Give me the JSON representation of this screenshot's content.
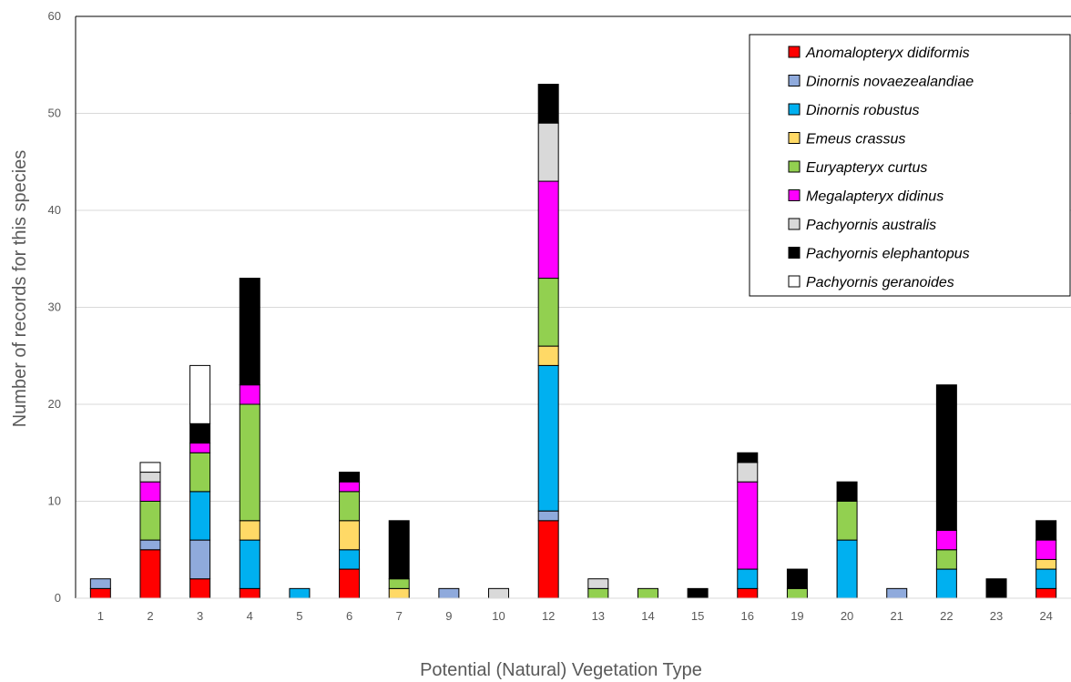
{
  "chart_data": {
    "type": "bar",
    "stacked": true,
    "title": "",
    "xlabel": "Potential (Natural) Vegetation Type",
    "ylabel": "Number of records for this species",
    "ylim": [
      0,
      60
    ],
    "yticks": [
      "0",
      "10",
      "20",
      "30",
      "40",
      "50",
      "60"
    ],
    "grid": true,
    "legend_position": "top-right",
    "categories": [
      "1",
      "2",
      "3",
      "4",
      "5",
      "6",
      "7",
      "9",
      "10",
      "12",
      "13",
      "14",
      "15",
      "16",
      "19",
      "20",
      "21",
      "22",
      "23",
      "24"
    ],
    "series": [
      {
        "name": "Anomalopteryx didiformis",
        "color": "#ff0000",
        "values": [
          1,
          5,
          2,
          1,
          0,
          3,
          0,
          0,
          0,
          8,
          0,
          0,
          0,
          1,
          0,
          0,
          0,
          0,
          0,
          1
        ]
      },
      {
        "name": "Dinornis novaezealandiae",
        "color": "#8faadc",
        "values": [
          1,
          1,
          4,
          0,
          0,
          0,
          0,
          1,
          0,
          1,
          0,
          0,
          0,
          0,
          0,
          0,
          1,
          0,
          0,
          0
        ]
      },
      {
        "name": "Dinornis robustus",
        "color": "#00b0f0",
        "values": [
          0,
          0,
          5,
          5,
          1,
          2,
          0,
          0,
          0,
          15,
          0,
          0,
          0,
          2,
          0,
          6,
          0,
          3,
          0,
          2
        ]
      },
      {
        "name": "Emeus crassus",
        "color": "#ffd966",
        "values": [
          0,
          0,
          0,
          2,
          0,
          3,
          1,
          0,
          0,
          2,
          0,
          0,
          0,
          0,
          0,
          0,
          0,
          0,
          0,
          1
        ]
      },
      {
        "name": "Euryapteryx curtus",
        "color": "#92d050",
        "values": [
          0,
          4,
          4,
          12,
          0,
          3,
          1,
          0,
          0,
          7,
          1,
          1,
          0,
          0,
          1,
          4,
          0,
          2,
          0,
          0
        ]
      },
      {
        "name": "Megalapteryx didinus",
        "color": "#ff00ff",
        "values": [
          0,
          2,
          1,
          2,
          0,
          1,
          0,
          0,
          0,
          10,
          0,
          0,
          0,
          9,
          0,
          0,
          0,
          2,
          0,
          2
        ]
      },
      {
        "name": "Pachyornis australis",
        "color": "#d9d9d9",
        "values": [
          0,
          1,
          0,
          0,
          0,
          0,
          0,
          0,
          1,
          6,
          1,
          0,
          0,
          2,
          0,
          0,
          0,
          0,
          0,
          0
        ]
      },
      {
        "name": "Pachyornis elephantopus",
        "color": "#000000",
        "values": [
          0,
          0,
          2,
          11,
          0,
          1,
          6,
          0,
          0,
          4,
          0,
          0,
          1,
          1,
          2,
          2,
          0,
          15,
          2,
          2
        ]
      },
      {
        "name": "Pachyornis geranoides",
        "color": "#ffffff",
        "values": [
          0,
          1,
          6,
          0,
          0,
          0,
          0,
          0,
          0,
          0,
          0,
          0,
          0,
          0,
          0,
          0,
          0,
          0,
          0,
          0
        ]
      }
    ]
  }
}
